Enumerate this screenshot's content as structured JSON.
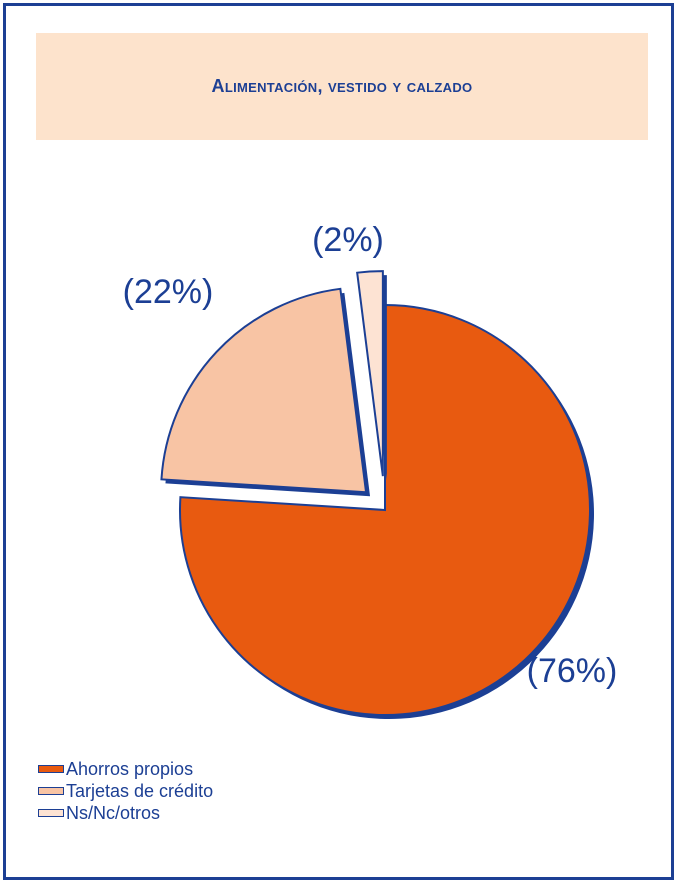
{
  "chart_data": {
    "type": "pie",
    "title": "Alimentación, vestido y calzado",
    "slices": [
      {
        "name": "Ahorros propios",
        "value": 76,
        "label": "(76%)",
        "color": "#e85a10"
      },
      {
        "name": "Tarjetas de crédito",
        "value": 22,
        "label": "(22%)",
        "color": "#f8c4a4"
      },
      {
        "name": "Ns/Nc/otros",
        "value": 2,
        "label": "(2%)",
        "color": "#fde3d3"
      }
    ],
    "legend_position": "bottom-left",
    "exploded": true
  },
  "colors": {
    "frame": "#1c3f94",
    "title_background": "#fde3cc",
    "text": "#1c3f94"
  }
}
